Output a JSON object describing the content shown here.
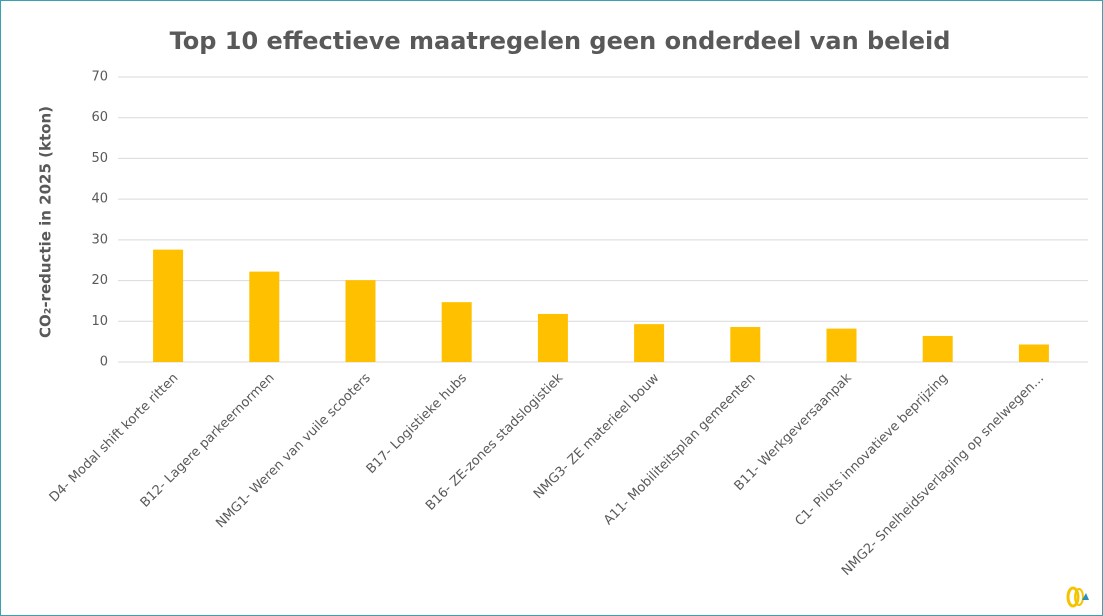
{
  "chart_data": {
    "type": "bar",
    "title": "Top 10 effectieve maatregelen geen onderdeel van beleid",
    "y_label": "CO₂-reductie in 2025 (kton)",
    "categories": [
      "D4- Modal shift korte ritten",
      "B12- Lagere parkeernormen",
      "NMG1- Weren van vuile scooters",
      "B17- Logistieke hubs",
      "B16- ZE-zones stadslogistiek",
      "NMG3- ZE materieel bouw",
      "A11- Mobiliteitsplan gemeenten",
      "B11- Werkgeversaanpak",
      "C1- Pilots innovatieve beprijzing",
      "NMG2- Snelheidsverlaging op snelwegen…"
    ],
    "values": [
      27.6,
      22.2,
      20.1,
      14.7,
      11.8,
      9.3,
      8.6,
      8.2,
      6.4,
      4.3
    ],
    "color": "#ffc000",
    "ylim": [
      0,
      70
    ],
    "yticks": [
      0,
      10,
      20,
      30,
      40,
      50,
      60,
      70
    ],
    "grid": true
  }
}
